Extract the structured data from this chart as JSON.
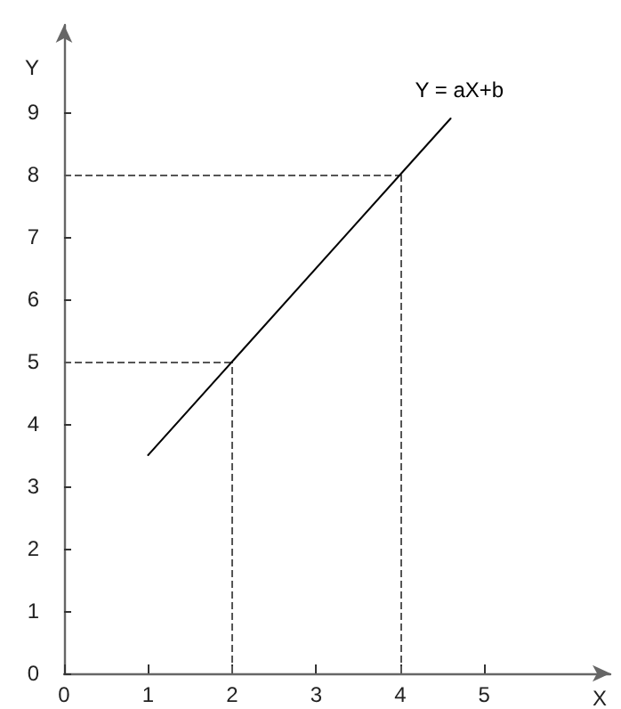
{
  "chart_data": {
    "type": "line",
    "xlabel": "X",
    "ylabel": "Y",
    "series": [
      {
        "name": "Y = aX+b",
        "color": "#000000",
        "x": [
          1,
          2,
          4,
          4.6
        ],
        "values": [
          3.5,
          5,
          8,
          8.9
        ]
      }
    ],
    "xlim": [
      0,
      6.5
    ],
    "xticks": [
      0,
      1,
      2,
      3,
      4,
      5
    ],
    "ylim": [
      0,
      10.4
    ],
    "yticks": [
      0,
      1,
      2,
      3,
      4,
      5,
      6,
      7,
      8,
      9
    ],
    "grid": false,
    "legend": false,
    "marker": "none",
    "line_style": "solid",
    "ref_lines": [
      {
        "axis": "x",
        "value": 2,
        "color": "#555555",
        "line_style": "dashed"
      },
      {
        "axis": "x",
        "value": 4,
        "color": "#555555",
        "line_style": "dashed"
      },
      {
        "axis": "y",
        "value": 5,
        "color": "#555555",
        "line_style": "dashed"
      },
      {
        "axis": "y",
        "value": 8,
        "color": "#555555",
        "line_style": "dashed"
      }
    ]
  }
}
